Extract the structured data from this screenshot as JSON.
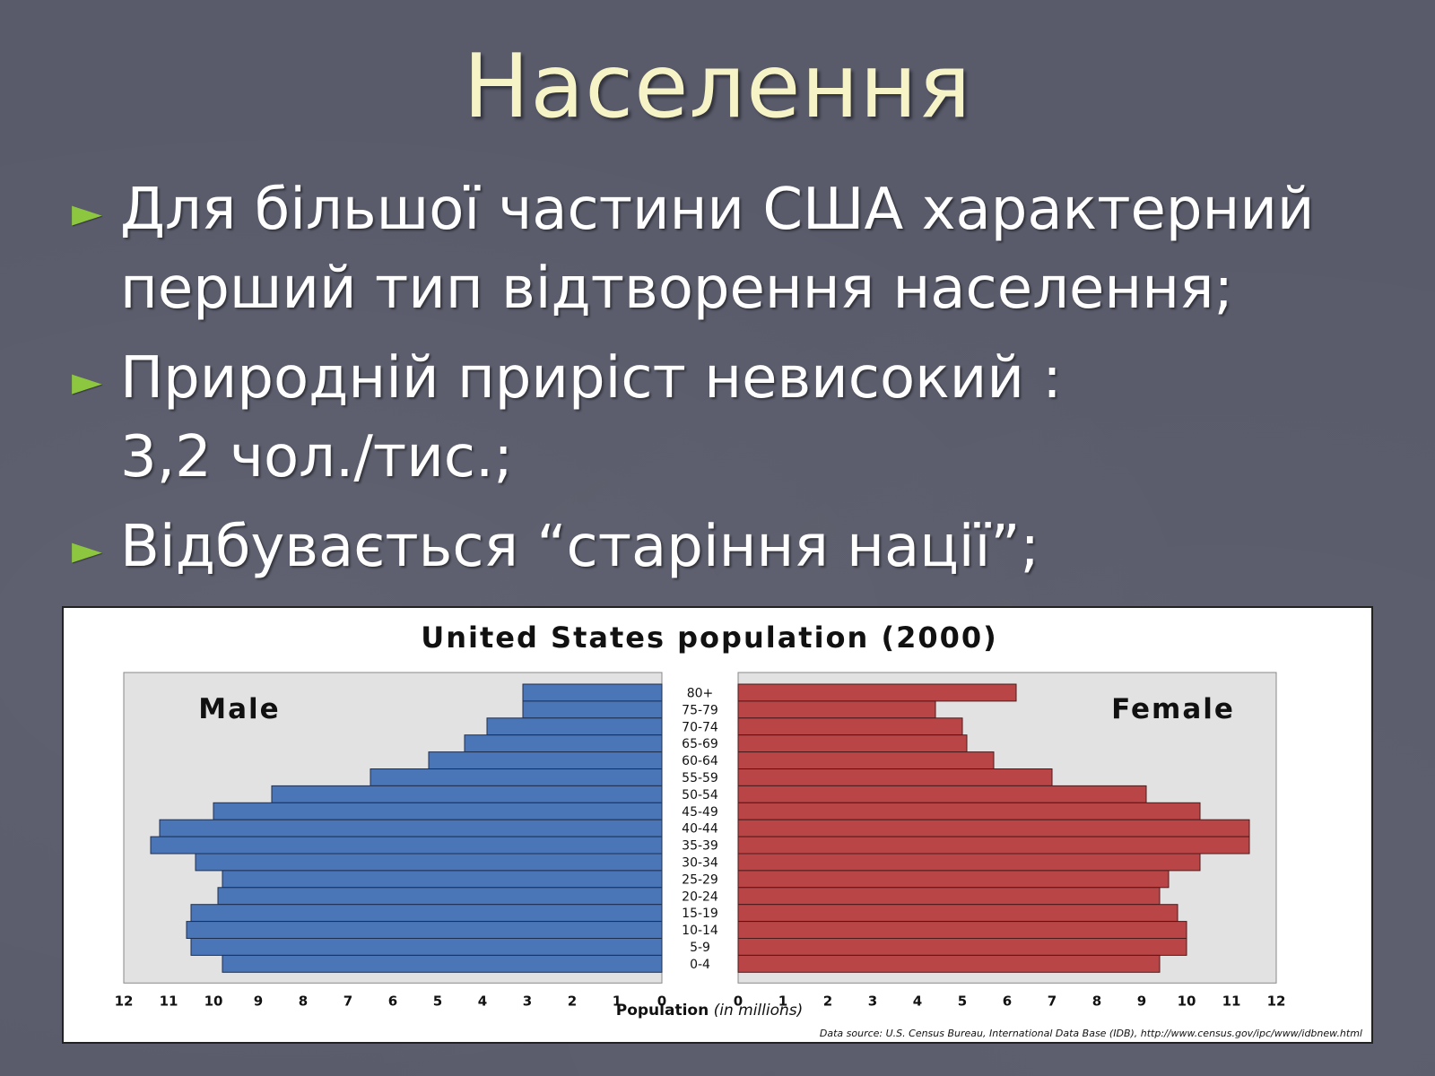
{
  "slide": {
    "title": "Населення",
    "bullets": [
      {
        "lines": [
          "Для більшої частини США характерний",
          "перший тип відтворення населення;"
        ]
      },
      {
        "lines": [
          "Природній приріст невисокий :",
          "3,2 чол./тис.;"
        ]
      },
      {
        "lines": [
          "Відбувається “старіння нації”;"
        ]
      }
    ],
    "bullet_icon": "triangle-right-icon",
    "colors": {
      "background": "#595b6b",
      "title": "#f6f3c6",
      "bullet_arrow": "#8dc63f"
    }
  },
  "chart_data": {
    "type": "bar",
    "orientation": "horizontal-population-pyramid",
    "title": "United States population (2000)",
    "left_label": "Male",
    "right_label": "Female",
    "xlabel_bold": "Population",
    "xlabel_italic": "(in millions)",
    "source": "Data source: U.S. Census Bureau, International Data Base (IDB), http://www.census.gov/ipc/www/idbnew.html",
    "xlim": [
      0,
      12
    ],
    "xticks": [
      "0",
      "1",
      "2",
      "3",
      "4",
      "5",
      "6",
      "7",
      "8",
      "9",
      "10",
      "11",
      "12"
    ],
    "categories": [
      "80+",
      "75-79",
      "70-74",
      "65-69",
      "60-64",
      "55-59",
      "50-54",
      "45-49",
      "40-44",
      "35-39",
      "30-34",
      "25-29",
      "20-24",
      "15-19",
      "10-14",
      "5-9",
      "0-4"
    ],
    "series": [
      {
        "name": "Male",
        "color": "#4a76b8",
        "values": [
          3.1,
          3.1,
          3.9,
          4.4,
          5.2,
          6.5,
          8.7,
          10.0,
          11.2,
          11.4,
          10.4,
          9.8,
          9.9,
          10.5,
          10.6,
          10.5,
          9.8
        ]
      },
      {
        "name": "Female",
        "color": "#b94547",
        "values": [
          6.2,
          4.4,
          5.0,
          5.1,
          5.7,
          7.0,
          9.1,
          10.3,
          11.4,
          11.4,
          10.3,
          9.6,
          9.4,
          9.8,
          10.0,
          10.0,
          9.4
        ]
      }
    ],
    "grid": false,
    "plot_background": "#e2e2e2"
  }
}
